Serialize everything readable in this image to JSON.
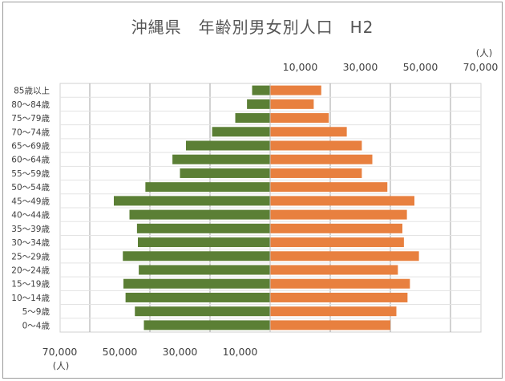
{
  "chart_data": {
    "type": "bar",
    "orientation": "horizontal",
    "layout": "population-pyramid",
    "title": "沖縄県　年齢別男女別人口　H2",
    "unit": "(人)",
    "categories": [
      "85歳以上",
      "80～84歳",
      "75～79歳",
      "70～74歳",
      "65～69歳",
      "60～64歳",
      "55～59歳",
      "50～54歳",
      "45～49歳",
      "40～44歳",
      "35～39歳",
      "30～34歳",
      "25～29歳",
      "20～24歳",
      "15～19歳",
      "10～14歳",
      "5～9歳",
      "0～4歳"
    ],
    "series": [
      {
        "side": "left",
        "color": "#5b7f35",
        "values": [
          6000,
          7700,
          11600,
          19300,
          28000,
          32500,
          30000,
          41500,
          52000,
          46800,
          44300,
          44000,
          49000,
          43700,
          48800,
          48100,
          45000,
          42000
        ]
      },
      {
        "side": "right",
        "color": "#e8803f",
        "values": [
          17000,
          14500,
          19500,
          25500,
          30500,
          34000,
          30500,
          39000,
          48000,
          45500,
          44000,
          44500,
          49500,
          42500,
          46500,
          45700,
          42000,
          40000
        ]
      }
    ],
    "x_ticks_right": [
      "10,000",
      "30,000",
      "50,000",
      "70,000"
    ],
    "x_ticks_left": [
      "70,000",
      "50,000",
      "30,000",
      "10,000"
    ],
    "xlim": [
      0,
      70000
    ],
    "grid": true
  }
}
